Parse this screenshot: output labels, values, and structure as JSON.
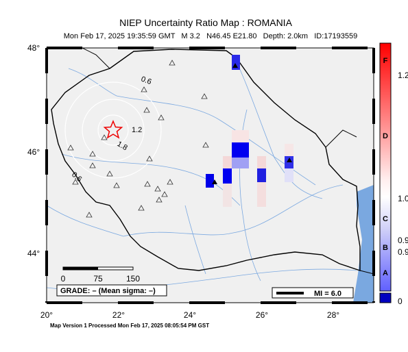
{
  "header": {
    "title": "NIEP Uncertainty Ratio Map : ROMANIA",
    "subtitle": "Mon Feb 17, 2025 19:35:59 GMT   M 3.2   N46.45 E21.80   Depth: 2.0km   ID:17193559"
  },
  "map": {
    "lat_labels": [
      "48°",
      "46°",
      "44°"
    ],
    "lon_labels": [
      "20°",
      "22°",
      "24°",
      "26°",
      "28°"
    ],
    "contour_labels": [
      "0.6",
      "1.2",
      "1.8",
      "0.6"
    ],
    "scale_labels": [
      "0",
      "75",
      "150"
    ],
    "grade": "GRADE: – (Mean sigma: –)",
    "mi_label": "MI = 6.0"
  },
  "colorbar": {
    "grades": [
      "F",
      "D",
      "C",
      "B",
      "A"
    ],
    "values": [
      "1.2",
      "1.0",
      "0.9",
      "0.9",
      "0"
    ]
  },
  "footer": "Map Version 1 Processed Mon Feb 17, 2025 08:05:54 PM GST"
}
